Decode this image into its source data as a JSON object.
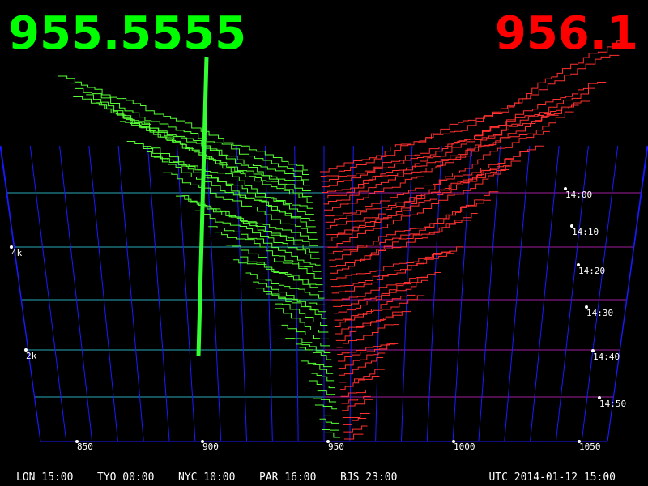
{
  "bid": "955.5555",
  "ask": "956.1",
  "price_axis": [
    "850",
    "900",
    "950",
    "1000",
    "1050"
  ],
  "depth_axis": [
    "4k",
    "2k"
  ],
  "time_axis": [
    "14:00",
    "14:10",
    "14:20",
    "14:30",
    "14:40",
    "14:50"
  ],
  "clocks": [
    "LON 15:00",
    "TYO 00:00",
    "NYC 10:00",
    "PAR 16:00",
    "BJS 23:00"
  ],
  "utc": "UTC 2014-01-12 15:00"
}
